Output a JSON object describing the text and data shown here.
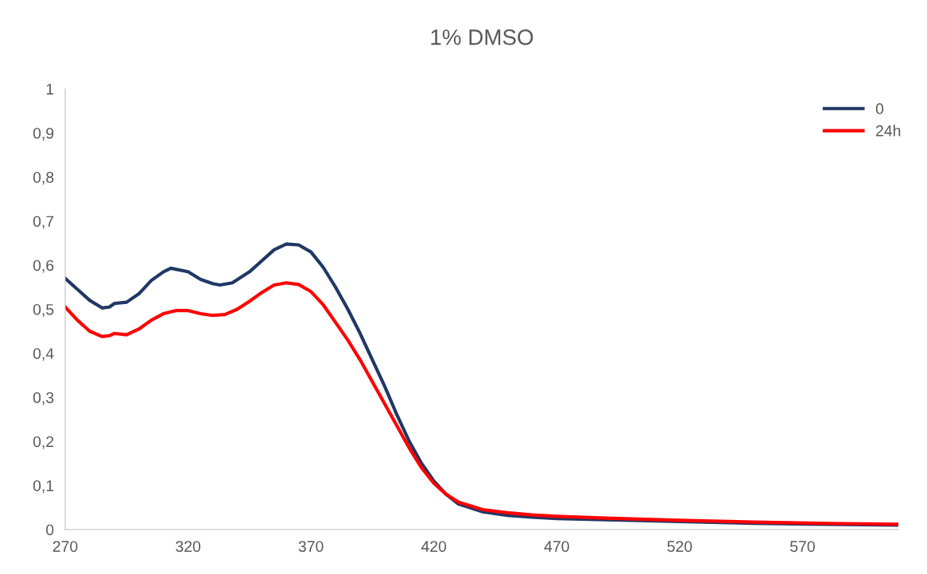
{
  "chart_data": {
    "type": "line",
    "title": "1% DMSO",
    "xlim": [
      270,
      609
    ],
    "xticks": [
      270,
      320,
      370,
      420,
      470,
      520,
      570
    ],
    "ylim": [
      0,
      1
    ],
    "yticks": [
      0,
      {
        "value": 0.1,
        "label": "0,1"
      },
      {
        "value": 0.2,
        "label": "0,2"
      },
      {
        "value": 0.3,
        "label": "0,3"
      },
      {
        "value": 0.4,
        "label": "0,4"
      },
      {
        "value": 0.5,
        "label": "0,5"
      },
      {
        "value": 0.6,
        "label": "0,6"
      },
      {
        "value": 0.7,
        "label": "0,7"
      },
      {
        "value": 0.8,
        "label": "0,8"
      },
      {
        "value": 0.9,
        "label": "0,9"
      },
      1
    ],
    "grid": false,
    "legend": "top right",
    "marker": "none",
    "line_style": "solid",
    "x": [
      270,
      275,
      280,
      285,
      288,
      290,
      295,
      300,
      305,
      310,
      313,
      320,
      325,
      330,
      333,
      338,
      345,
      350,
      355,
      360,
      365,
      370,
      375,
      380,
      385,
      390,
      395,
      400,
      405,
      410,
      415,
      420,
      425,
      430,
      440,
      450,
      460,
      470,
      490,
      520,
      550,
      580,
      609
    ],
    "series": [
      {
        "name": "0",
        "color": "#203864",
        "values": [
          0.57,
          0.545,
          0.52,
          0.503,
          0.505,
          0.513,
          0.516,
          0.535,
          0.565,
          0.585,
          0.593,
          0.585,
          0.568,
          0.558,
          0.555,
          0.56,
          0.585,
          0.61,
          0.635,
          0.648,
          0.646,
          0.63,
          0.595,
          0.55,
          0.5,
          0.445,
          0.385,
          0.325,
          0.26,
          0.2,
          0.15,
          0.11,
          0.08,
          0.058,
          0.04,
          0.032,
          0.028,
          0.025,
          0.022,
          0.018,
          0.014,
          0.012,
          0.01
        ]
      },
      {
        "name": "24h",
        "color": "#ff0000",
        "x": [
          270,
          275,
          280,
          285,
          288,
          290,
          295,
          300,
          305,
          310,
          315,
          320,
          325,
          330,
          335,
          340,
          345,
          350,
          355,
          360,
          365,
          370,
          375,
          380,
          385,
          390,
          395,
          400,
          405,
          410,
          415,
          420,
          425,
          430,
          440,
          450,
          460,
          470,
          490,
          520,
          550,
          580,
          609
        ],
        "values": [
          0.505,
          0.475,
          0.45,
          0.438,
          0.44,
          0.445,
          0.442,
          0.455,
          0.475,
          0.49,
          0.497,
          0.497,
          0.49,
          0.486,
          0.488,
          0.5,
          0.518,
          0.538,
          0.555,
          0.56,
          0.556,
          0.54,
          0.51,
          0.47,
          0.43,
          0.385,
          0.335,
          0.285,
          0.235,
          0.185,
          0.14,
          0.105,
          0.08,
          0.062,
          0.045,
          0.038,
          0.033,
          0.03,
          0.026,
          0.021,
          0.017,
          0.014,
          0.012
        ]
      }
    ]
  }
}
